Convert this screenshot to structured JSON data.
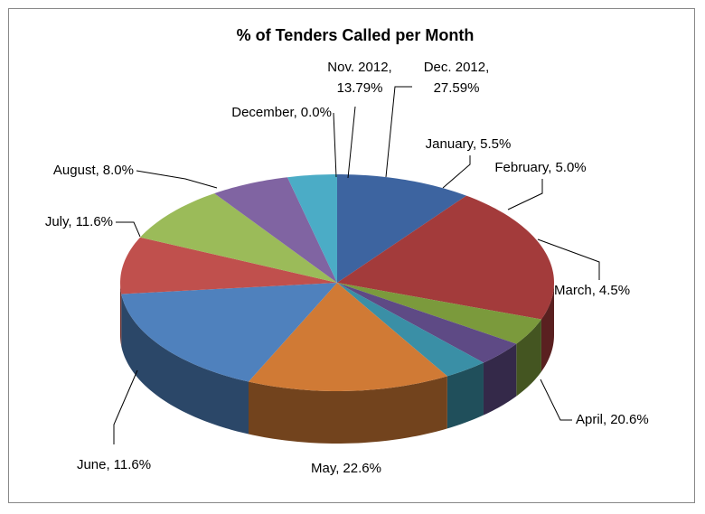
{
  "chart_data": {
    "type": "pie3d",
    "title": "% of Tenders Called per Month",
    "categories": [
      "Nov. 2012",
      "Dec. 2012",
      "January",
      "February",
      "March",
      "April",
      "May",
      "June",
      "July",
      "August",
      null,
      "December"
    ],
    "values": [
      13.79,
      27.59,
      5.5,
      5.0,
      4.5,
      20.6,
      22.6,
      11.6,
      11.6,
      8.0,
      5.0,
      0.0
    ],
    "value_labels": [
      "13.79%",
      "27.59%",
      "5.5%",
      "5.0%",
      "4.5%",
      "20.6%",
      "22.6%",
      "11.6%",
      "11.6%",
      "8.0%",
      null,
      "0.0%"
    ],
    "label_separator": ",",
    "colors": [
      "#3d64a0",
      "#a33b3b",
      "#7b9a3c",
      "#5e4a85",
      "#3a8fa6",
      "#d07a35",
      "#4f81bd",
      "#c0504d",
      "#9bbb59",
      "#8064a2",
      "#4bacc6",
      "#b9c8e2"
    ]
  }
}
